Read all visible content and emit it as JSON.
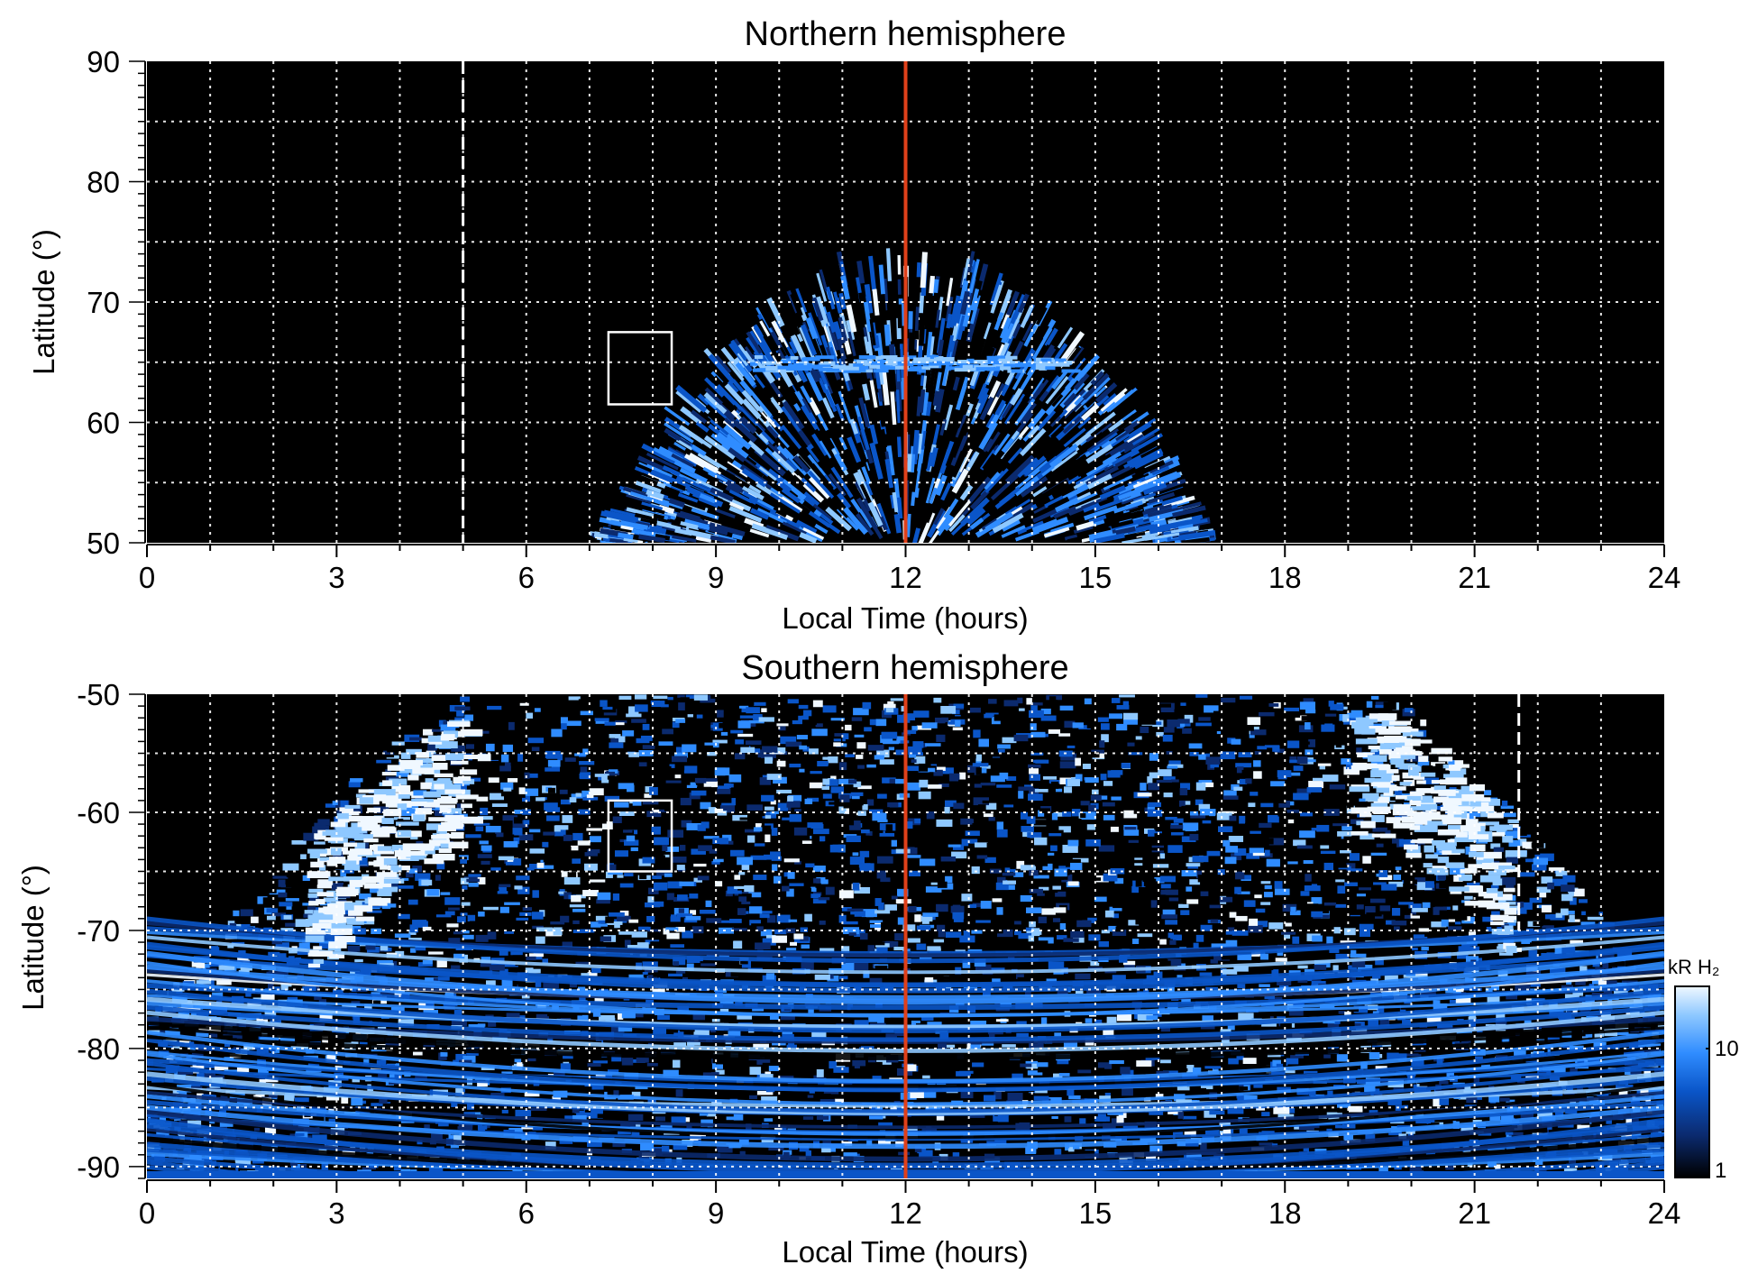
{
  "chart_data": [
    {
      "type": "heatmap",
      "title": "Northern hemisphere",
      "xlabel": "Local Time (hours)",
      "ylabel": "Latitude (°)",
      "xlim": [
        0,
        24
      ],
      "ylim": [
        50,
        90
      ],
      "xticks": [
        0,
        3,
        6,
        9,
        12,
        15,
        18,
        21,
        24
      ],
      "yticks": [
        50,
        60,
        70,
        80,
        90
      ],
      "grid": true,
      "background": "#000000",
      "emission": {
        "center_lt": 12,
        "lt_start": 7.6,
        "lt_end": 16.5,
        "edge_lat_at_noon": 72.5,
        "edge_lat_at_ends": 50,
        "bright_band_lat": 65
      },
      "noon_line_lt": 12,
      "dashed_line_lt": 5,
      "box": {
        "lt": [
          7.3,
          8.3
        ],
        "lat": [
          61.5,
          67.5
        ]
      }
    },
    {
      "type": "heatmap",
      "title": "Southern hemisphere",
      "xlabel": "Local Time (hours)",
      "ylabel": "Latitude (°)",
      "xlim": [
        0,
        24
      ],
      "ylim": [
        -91,
        -50
      ],
      "xticks": [
        0,
        3,
        6,
        9,
        12,
        15,
        18,
        21,
        24
      ],
      "yticks": [
        -90,
        -80,
        -70,
        -60,
        -50
      ],
      "grid": true,
      "background": "#000000",
      "emission": {
        "center_lt": 12,
        "lt_left_top": 5,
        "lt_right_top": 19.5,
        "edge_lat_at_axis": -77,
        "bright_arc_left_lt": [
          2.5,
          5
        ],
        "bright_arc_right_lt": [
          19,
          21.5
        ]
      },
      "noon_line_lt": 12,
      "dashed_line_lt": 21.7,
      "dashed_line_lat": [
        -70,
        -50
      ],
      "box": {
        "lt": [
          7.3,
          8.3
        ],
        "lat": [
          -65,
          -59
        ]
      }
    }
  ],
  "colorbar": {
    "title": "kR H₂",
    "scale": "log",
    "ticks": [
      "1",
      "10"
    ],
    "min": 1,
    "max": 30,
    "colors": [
      "#000000",
      "#0b2a6e",
      "#0a55c8",
      "#2f8cff",
      "#8ec8ff",
      "#f0f8ff"
    ]
  },
  "colors": {
    "noon_line": "#e0401a",
    "grid": "#ffffff",
    "box": "#ffffff"
  }
}
